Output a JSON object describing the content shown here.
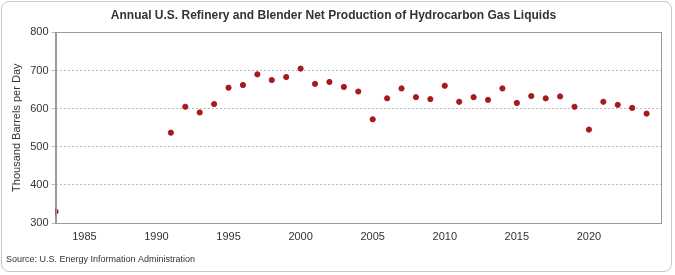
{
  "chart_data": {
    "type": "scatter",
    "title": "Annual U.S. Refinery and Blender Net Production of Hydrocarbon Gas Liquids",
    "y_label": "Thousand Barrels per Day",
    "source": "Source: U.S. Energy Information Administration",
    "x": [
      1983,
      1991,
      1992,
      1993,
      1994,
      1995,
      1996,
      1997,
      1998,
      1999,
      2000,
      2001,
      2002,
      2003,
      2004,
      2005,
      2006,
      2007,
      2008,
      2009,
      2010,
      2011,
      2012,
      2013,
      2014,
      2015,
      2016,
      2017,
      2018,
      2019,
      2020,
      2021,
      2022,
      2023,
      2024
    ],
    "values": [
      330,
      537,
      605,
      590,
      612,
      655,
      662,
      690,
      675,
      683,
      705,
      665,
      670,
      657,
      645,
      572,
      627,
      653,
      630,
      625,
      660,
      618,
      630,
      623,
      653,
      615,
      633,
      627,
      632,
      605,
      545,
      618,
      610,
      602,
      587
    ],
    "color": "#a51b1b",
    "marker": "circle",
    "xlim": [
      1983,
      2025
    ],
    "xticks": [
      1985,
      1990,
      1995,
      2000,
      2005,
      2010,
      2015,
      2020
    ],
    "ylim": [
      300,
      800
    ],
    "yticks": [
      300,
      400,
      500,
      600,
      700,
      800
    ],
    "grid": true
  }
}
